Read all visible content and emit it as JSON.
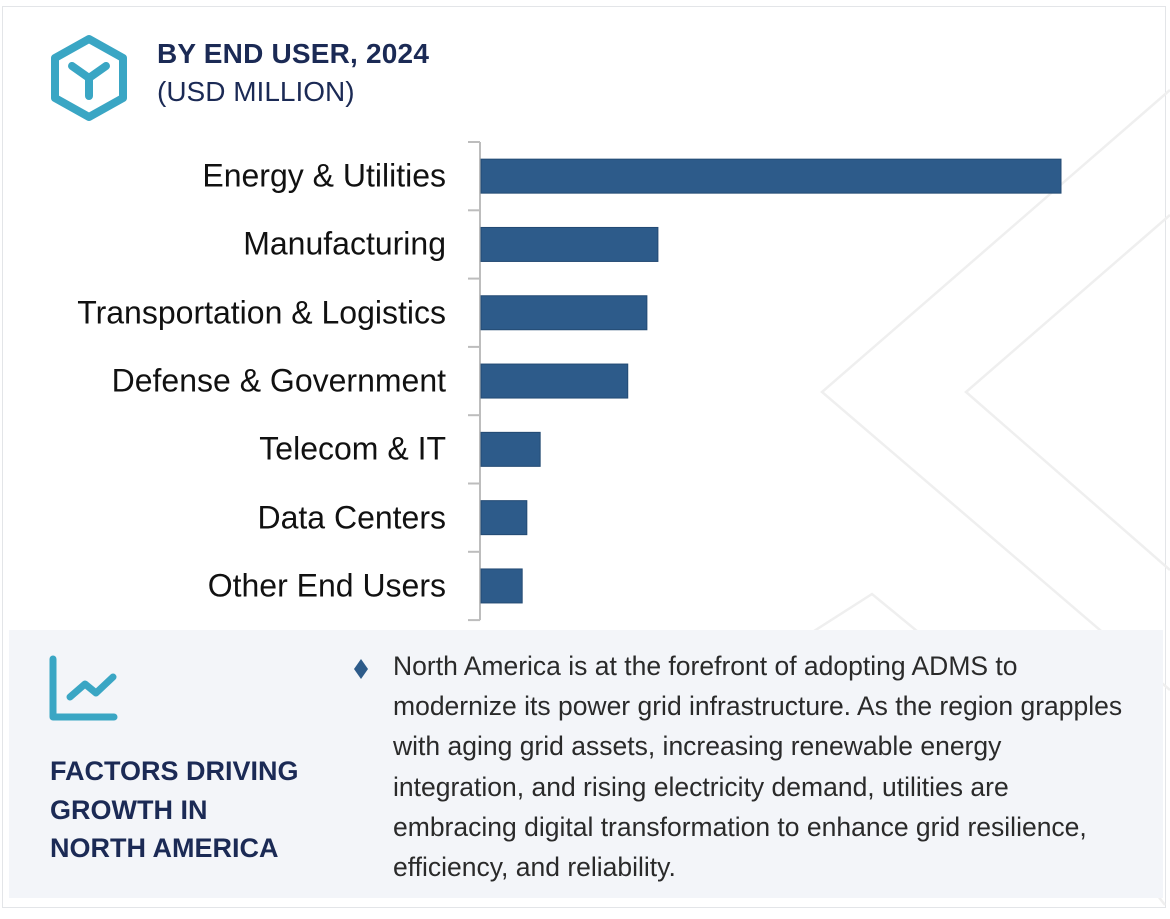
{
  "header": {
    "icon": "hexagon-y-icon",
    "title": "BY END USER, 2024",
    "subtitle": "(USD MILLION)"
  },
  "chart_data": {
    "type": "bar",
    "orientation": "horizontal",
    "title": "BY END USER, 2024",
    "subtitle": "(USD MILLION)",
    "xlabel": "",
    "ylabel": "",
    "categories": [
      "Energy & Utilities",
      "Manufacturing",
      "Transportation & Logistics",
      "Defense & Government",
      "Telecom & IT",
      "Data Centers",
      "Other End Users"
    ],
    "values": [
      100,
      30.5,
      28.6,
      25.3,
      10.2,
      7.9,
      7.1
    ],
    "value_note": "relative index (no axis scale printed); Energy & Utilities = 100",
    "xlim": [
      0,
      100
    ],
    "grid": false,
    "legend": "none",
    "bar_color": "#2d5b8a"
  },
  "factors": {
    "icon": "line-chart-trend-icon",
    "title_lines": [
      "FACTORS DRIVING",
      "GROWTH IN",
      "NORTH AMERICA"
    ],
    "bullet_icon": "diamond-bullet-icon",
    "text": "North America is at the forefront of adopting ADMS to modernize its power grid infrastructure. As the region grapples with aging grid assets, increasing renewable energy integration, and rising electricity demand, utilities are embracing digital transformation to enhance grid resilience, efficiency, and reliability."
  },
  "colors": {
    "accent_teal": "#3aa6c4",
    "navy_text": "#1b2a55",
    "bar_blue": "#2d5b8a",
    "panel_bg": "#f3f5f9"
  }
}
